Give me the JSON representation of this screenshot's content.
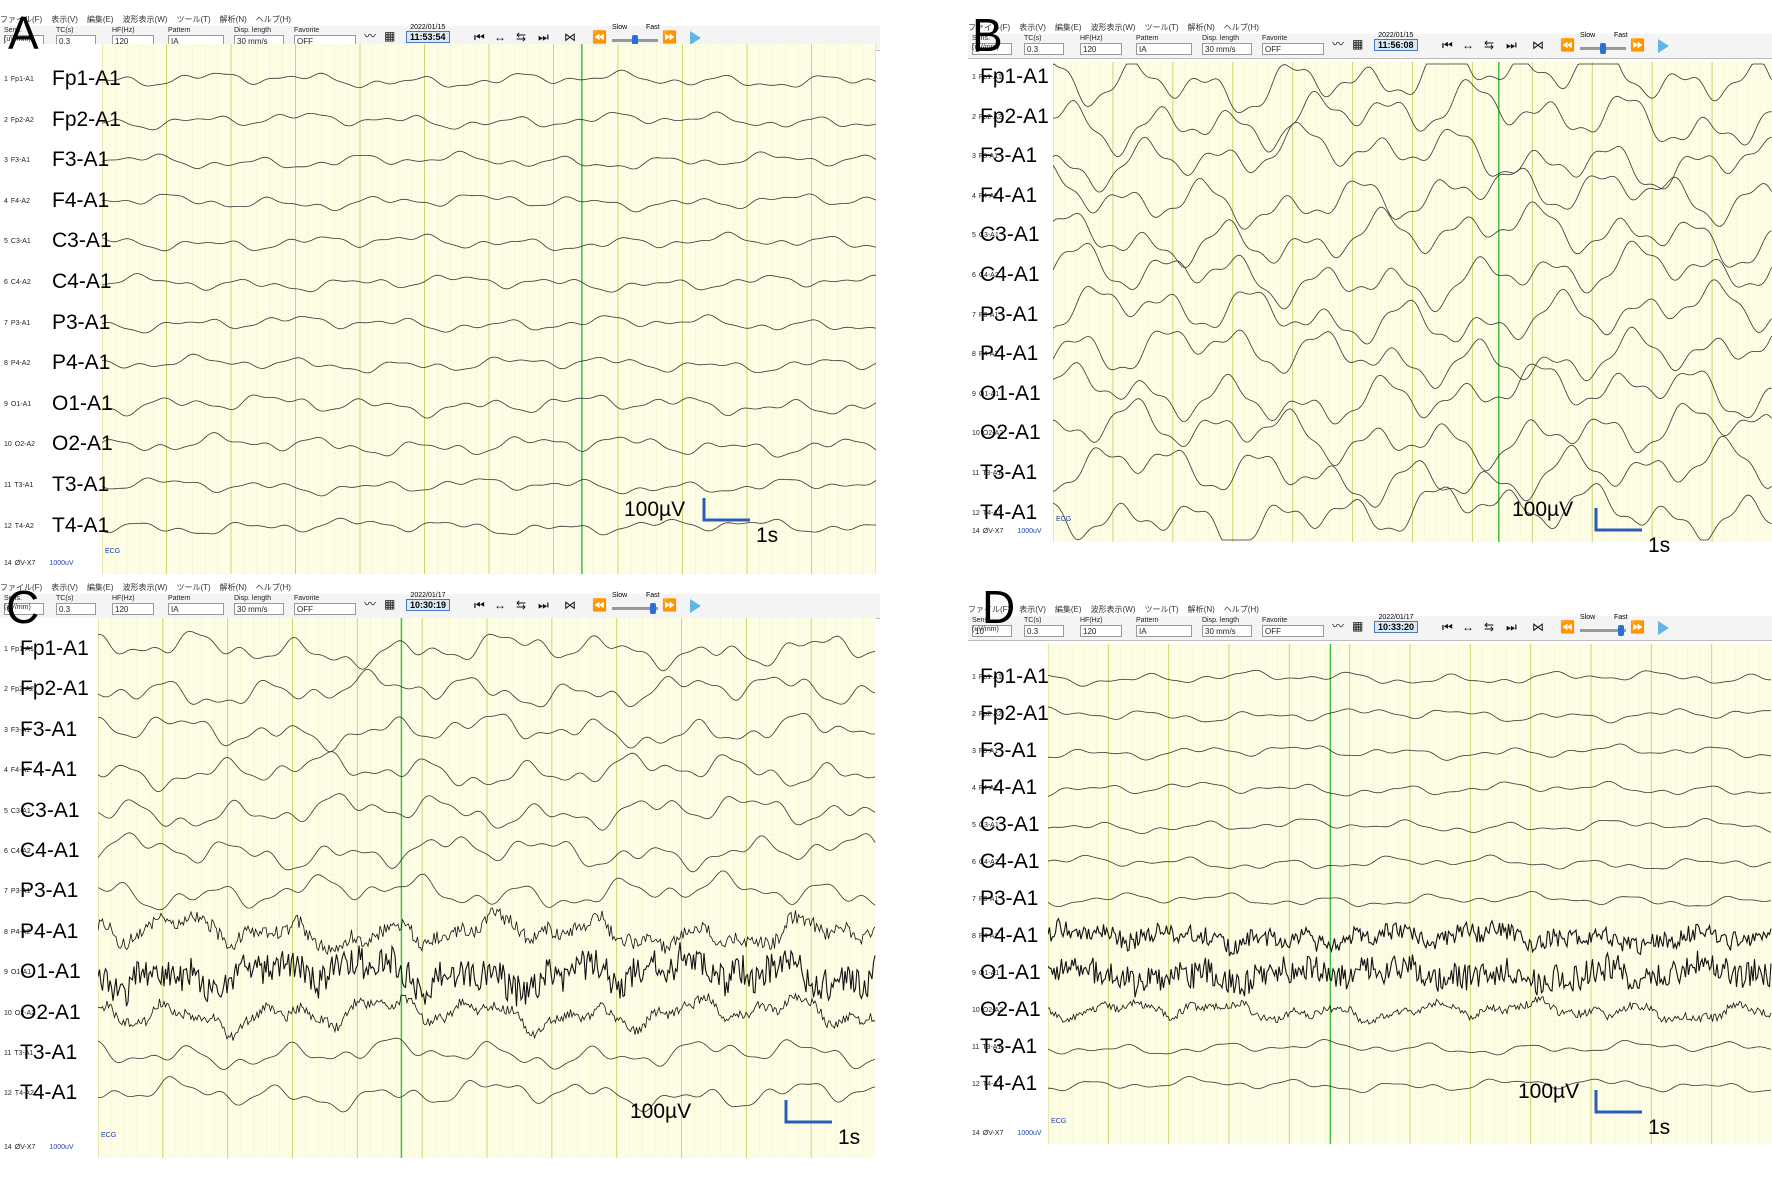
{
  "panels": [
    {
      "letter": "A",
      "date": "2022/01/15",
      "time": "11:53:54",
      "tc": "0.3",
      "hf": "120",
      "pattern": "IA",
      "disp": "30 mm/s",
      "favorite": "OFF",
      "sens": "",
      "noise": [
        0,
        0,
        0,
        0,
        0,
        0,
        0,
        0,
        0,
        0,
        0,
        0
      ],
      "amp": [
        7,
        7,
        7,
        7,
        7,
        7,
        7,
        7,
        9,
        9,
        7,
        7
      ]
    },
    {
      "letter": "B",
      "date": "2022/01/15",
      "time": "11:56:08",
      "tc": "0.3",
      "hf": "120",
      "pattern": "IA",
      "disp": "30 mm/s",
      "favorite": "OFF",
      "sens": "1",
      "noise": [
        0,
        0,
        0,
        0,
        0,
        0,
        0,
        0,
        0,
        0,
        0,
        0
      ],
      "amp": [
        28,
        28,
        26,
        26,
        26,
        26,
        26,
        26,
        26,
        26,
        26,
        26
      ]
    },
    {
      "letter": "C",
      "date": "2022/01/17",
      "time": "10:30:19",
      "tc": "0.3",
      "hf": "120",
      "pattern": "IA",
      "disp": "30 mm/s",
      "favorite": "OFF",
      "sens": "0",
      "noise": [
        0,
        0,
        0,
        0,
        0,
        0,
        0,
        7,
        16,
        5,
        0,
        0
      ],
      "amp": [
        15,
        15,
        15,
        15,
        15,
        15,
        15,
        16,
        16,
        16,
        13,
        13
      ]
    },
    {
      "letter": "D",
      "date": "2022/01/17",
      "time": "10:33:20",
      "tc": "0.3",
      "hf": "120",
      "pattern": "IA",
      "disp": "30 mm/s",
      "favorite": "OFF",
      "sens": "10",
      "noise": [
        0,
        0,
        0,
        0,
        0,
        0,
        0,
        9,
        14,
        4,
        0,
        0
      ],
      "amp": [
        6,
        6,
        6,
        6,
        6,
        6,
        6,
        9,
        9,
        9,
        6,
        6
      ]
    }
  ],
  "menu": [
    "ファイル(F)",
    "表示(V)",
    "編集(E)",
    "波形表示(W)",
    "ツール(T)",
    "解析(N)",
    "ヘルプ(H)"
  ],
  "field_caps": {
    "sens": "Sens.(uV/mm)",
    "tc": "TC(s)",
    "hf": "HF(Hz)",
    "pattern": "Pattern",
    "disp": "Disp. length",
    "favorite": "Favorite"
  },
  "slow_label": "Slow",
  "fast_label": "Fast",
  "channels": [
    {
      "num": "1",
      "small": "Fp1-A1",
      "big": "Fp1-A1"
    },
    {
      "num": "2",
      "small": "Fp2-A2",
      "big": "Fp2-A1"
    },
    {
      "num": "3",
      "small": "F3-A1",
      "big": "F3-A1"
    },
    {
      "num": "4",
      "small": "F4-A2",
      "big": "F4-A1"
    },
    {
      "num": "5",
      "small": "C3-A1",
      "big": "C3-A1"
    },
    {
      "num": "6",
      "small": "C4-A2",
      "big": "C4-A1"
    },
    {
      "num": "7",
      "small": "P3-A1",
      "big": "P3-A1"
    },
    {
      "num": "8",
      "small": "P4-A2",
      "big": "P4-A1"
    },
    {
      "num": "9",
      "small": "O1-A1",
      "big": "O1-A1"
    },
    {
      "num": "10",
      "small": "O2-A2",
      "big": "O2-A1"
    },
    {
      "num": "11",
      "small": "T3-A1",
      "big": "T3-A1"
    },
    {
      "num": "12",
      "small": "T4-A2",
      "big": "T4-A1"
    }
  ],
  "ecg_row": {
    "num": "14",
    "label": "ØV-X7",
    "ecg": "ECG",
    "gain": "1000uV"
  },
  "scale": {
    "amp": "100µV",
    "time": "1s"
  },
  "colors": {
    "plot_bg": "#fdfde6",
    "grid_minor": "#e8ecaa",
    "grid_major": "#cfd56e",
    "cursor": "#3fbf3f",
    "scale_bar": "#2a5cb8"
  }
}
